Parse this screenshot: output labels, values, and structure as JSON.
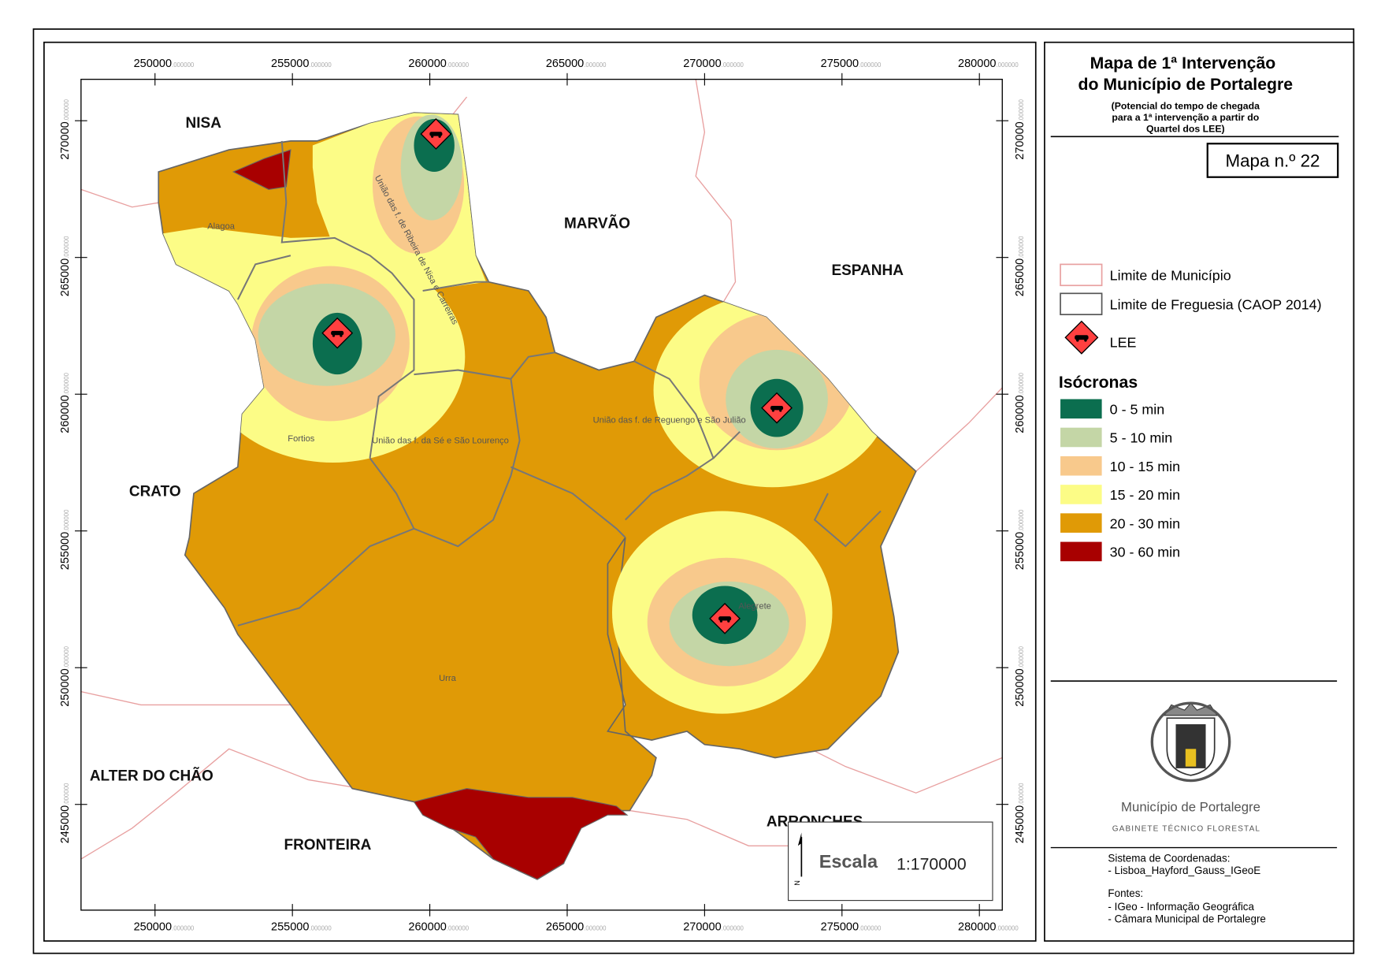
{
  "header": {
    "title": [
      "Mapa de 1ª Intervenção",
      "do Município de Portalegre"
    ],
    "subtitle": [
      "(Potencial do tempo de chegada",
      "para a 1ª intervenção a partir do",
      "Quartel dos LEE)"
    ],
    "map_number": "Mapa n.º 22"
  },
  "map": {
    "x_ticks": [
      "250000",
      "255000",
      "260000",
      "265000",
      "270000",
      "275000",
      "280000"
    ],
    "y_ticks": [
      "270000",
      "265000",
      "260000",
      "255000",
      "250000",
      "245000"
    ],
    "tick_decimals": ".000000",
    "regions": [
      "NISA",
      "MARVÃO",
      "ESPANHA",
      "CRATO",
      "ALTER DO CHÃO",
      "FRONTEIRA",
      "ARRONCHES"
    ],
    "parishes": [
      "Alagoa",
      "Fortios",
      "Urra",
      "Alegrete",
      "União das f. da Sé e São Lourenço",
      "União das f. de Reguengo e São Julião",
      "União das f. de Ribeira de Nisa e Carreiras"
    ],
    "scale_label": "Escala",
    "scale": "1:170000",
    "north": "N"
  },
  "legend": {
    "items": [
      "Limite de Município",
      "Limite de Freguesia (CAOP 2014)",
      "LEE"
    ],
    "isochrones_title": "Isócronas",
    "isochrones": [
      {
        "label": "0 - 5 min",
        "color": "#0b6e4f"
      },
      {
        "label": "5 - 10 min",
        "color": "#c4d6a6"
      },
      {
        "label": "10 - 15 min",
        "color": "#f8c98c"
      },
      {
        "label": "15 - 20 min",
        "color": "#fcfc86"
      },
      {
        "label": "20 - 30 min",
        "color": "#e09a06"
      },
      {
        "label": "30 - 60 min",
        "color": "#a80000"
      }
    ]
  },
  "footer": {
    "org": "Município de Portalegre",
    "dept": "GABINETE TÉCNICO FLORESTAL",
    "coords_title": "Sistema de Coordenadas:",
    "coords": "- Lisboa_Hayford_Gauss_IGeoE",
    "sources_title": "Fontes:",
    "sources": [
      "- IGeo - Informação Geográfica",
      "- Câmara Municipal de Portalegre"
    ]
  }
}
